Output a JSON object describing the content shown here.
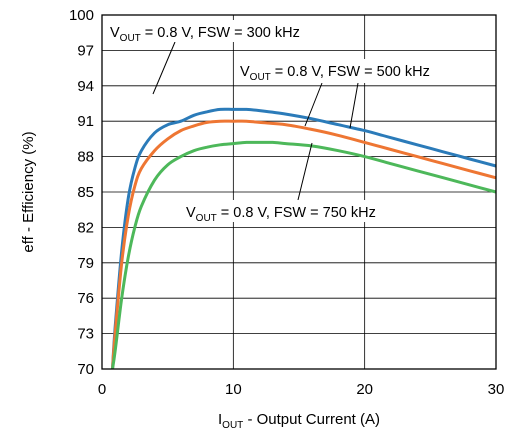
{
  "chart_data": {
    "type": "line",
    "xlabel": {
      "main": "I",
      "sub": "OUT",
      "rest": " - Output Current (A)"
    },
    "ylabel": "eff - Efficiency (%)",
    "xlim": [
      0,
      30
    ],
    "ylim": [
      70,
      100
    ],
    "xticks": [
      0,
      10,
      20,
      30
    ],
    "yticks": [
      70,
      73,
      76,
      79,
      82,
      85,
      88,
      91,
      94,
      97,
      100
    ],
    "grid": true,
    "series": [
      {
        "name": "V_OUT = 0.8 V, FSW = 300 kHz",
        "color": "#2b7bb9",
        "x": [
          0.8,
          1.0,
          1.5,
          2.0,
          2.5,
          3.0,
          4.0,
          5.0,
          6.0,
          7.0,
          8.0,
          9.0,
          10.0,
          11.0,
          12.0,
          14.0,
          16.0,
          18.0,
          20.0,
          22.0,
          24.0,
          26.0,
          28.0,
          30.0
        ],
        "y": [
          70.0,
          73.5,
          80.0,
          84.5,
          87.0,
          88.5,
          90.0,
          90.7,
          91.0,
          91.5,
          91.8,
          92.0,
          92.0,
          92.0,
          91.9,
          91.6,
          91.2,
          90.7,
          90.2,
          89.6,
          89.0,
          88.4,
          87.8,
          87.2
        ]
      },
      {
        "name": "V_OUT = 0.8 V, FSW = 500 kHz",
        "color": "#ee7633",
        "x": [
          0.8,
          1.0,
          1.5,
          2.0,
          2.5,
          3.0,
          4.0,
          5.0,
          6.0,
          7.0,
          8.0,
          9.0,
          10.0,
          11.0,
          12.0,
          14.0,
          16.0,
          18.0,
          20.0,
          22.0,
          24.0,
          26.0,
          28.0,
          30.0
        ],
        "y": [
          70.0,
          73.0,
          79.0,
          83.0,
          85.5,
          87.0,
          88.5,
          89.5,
          90.2,
          90.6,
          90.9,
          91.0,
          91.0,
          91.0,
          90.9,
          90.7,
          90.3,
          89.8,
          89.2,
          88.6,
          88.0,
          87.4,
          86.8,
          86.2
        ]
      },
      {
        "name": "V_OUT = 0.8 V, FSW = 750 kHz",
        "color": "#4db85a",
        "x": [
          0.8,
          1.0,
          1.5,
          2.0,
          2.5,
          3.0,
          4.0,
          5.0,
          6.0,
          7.0,
          8.0,
          9.0,
          10.0,
          11.0,
          12.0,
          13.0,
          14.0,
          16.0,
          18.0,
          20.0,
          22.0,
          24.0,
          26.0,
          28.0,
          30.0
        ],
        "y": [
          70.0,
          71.5,
          76.0,
          79.5,
          82.0,
          83.8,
          86.0,
          87.3,
          88.0,
          88.5,
          88.8,
          89.0,
          89.1,
          89.2,
          89.2,
          89.2,
          89.1,
          88.9,
          88.5,
          88.0,
          87.4,
          86.8,
          86.2,
          85.6,
          85.0
        ]
      }
    ],
    "annotations": [
      {
        "id": "a300",
        "main": "V",
        "sub": "OUT",
        "rest": " = 0.8 V, FSW = 300 kHz"
      },
      {
        "id": "a500",
        "main": "V",
        "sub": "OUT",
        "rest": " = 0.8 V, FSW = 500 kHz"
      },
      {
        "id": "a750",
        "main": "V",
        "sub": "OUT",
        "rest": " = 0.8 V, FSW = 750 kHz"
      }
    ]
  }
}
